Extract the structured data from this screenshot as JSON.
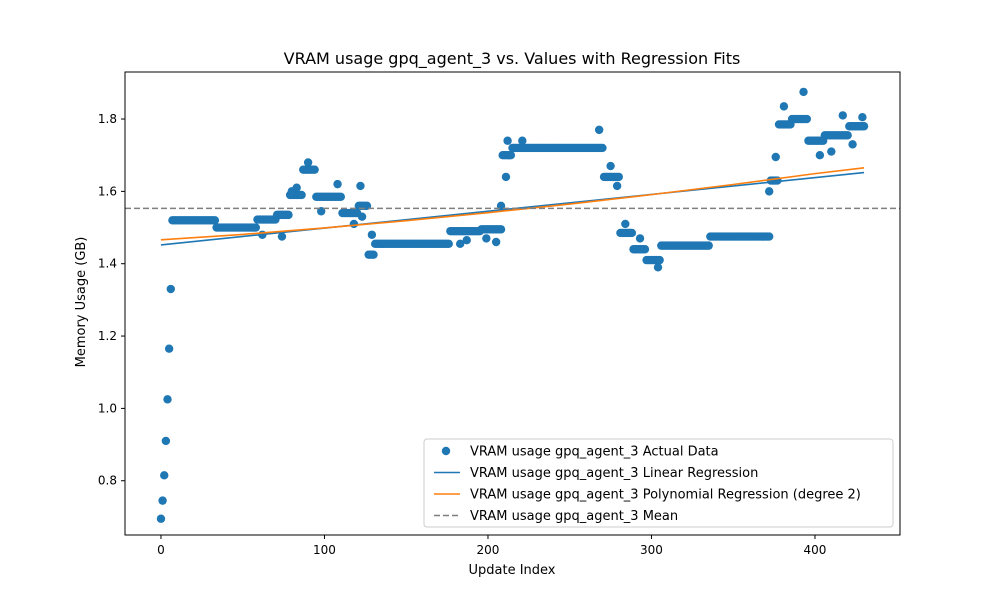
{
  "chart_data": {
    "type": "scatter",
    "title": "VRAM usage gpq_agent_3 vs. Values with Regression Fits",
    "xlabel": "Update Index",
    "ylabel": "Memory Usage (GB)",
    "xlim": [
      -22,
      452
    ],
    "ylim": [
      0.65,
      1.93
    ],
    "x_ticks": [
      0,
      100,
      200,
      300,
      400
    ],
    "y_ticks": [
      0.8,
      1.0,
      1.2,
      1.4,
      1.6,
      1.8
    ],
    "grid": false,
    "legend_position": "lower-right",
    "colors": {
      "scatter": "#1f77b4",
      "linear": "#1f77b4",
      "poly": "#ff7f0e",
      "mean": "#7f7f7f"
    },
    "legend": [
      {
        "label": "VRAM usage gpq_agent_3 Actual Data",
        "kind": "marker",
        "color": "#1f77b4"
      },
      {
        "label": "VRAM usage gpq_agent_3 Linear Regression",
        "kind": "line",
        "color": "#1f77b4"
      },
      {
        "label": "VRAM usage gpq_agent_3 Polynomial Regression (degree 2)",
        "kind": "line",
        "color": "#ff7f0e"
      },
      {
        "label": "VRAM usage gpq_agent_3 Mean",
        "kind": "dashed",
        "color": "#7f7f7f"
      }
    ],
    "mean": 1.553,
    "linear_regression": {
      "x": [
        0,
        430
      ],
      "y": [
        1.452,
        1.652
      ]
    },
    "polynomial_regression": {
      "x": [
        0,
        50,
        100,
        150,
        200,
        250,
        300,
        350,
        400,
        430
      ],
      "y": [
        1.466,
        1.481,
        1.499,
        1.519,
        1.541,
        1.565,
        1.591,
        1.619,
        1.649,
        1.665
      ]
    },
    "segments": [
      [
        0,
        0,
        0.695
      ],
      [
        1,
        1,
        0.745
      ],
      [
        2,
        2,
        0.815
      ],
      [
        3,
        3,
        0.91
      ],
      [
        4,
        4,
        1.025
      ],
      [
        5,
        5,
        1.165
      ],
      [
        6,
        6,
        1.33
      ],
      [
        7,
        33,
        1.52
      ],
      [
        34,
        58,
        1.5
      ],
      [
        59,
        70,
        1.522
      ],
      [
        71,
        78,
        1.535
      ],
      [
        79,
        86,
        1.59
      ],
      [
        87,
        94,
        1.66
      ],
      [
        95,
        110,
        1.585
      ],
      [
        111,
        120,
        1.54
      ],
      [
        121,
        126,
        1.56
      ],
      [
        127,
        130,
        1.425
      ],
      [
        131,
        176,
        1.455
      ],
      [
        177,
        195,
        1.49
      ],
      [
        196,
        208,
        1.495
      ],
      [
        209,
        214,
        1.7
      ],
      [
        215,
        270,
        1.72
      ],
      [
        271,
        280,
        1.64
      ],
      [
        281,
        288,
        1.485
      ],
      [
        289,
        296,
        1.44
      ],
      [
        297,
        305,
        1.41
      ],
      [
        306,
        335,
        1.45
      ],
      [
        336,
        372,
        1.475
      ],
      [
        373,
        377,
        1.63
      ],
      [
        378,
        385,
        1.785
      ],
      [
        386,
        395,
        1.8
      ],
      [
        396,
        405,
        1.74
      ],
      [
        406,
        420,
        1.755
      ],
      [
        421,
        430,
        1.78
      ]
    ],
    "outliers": [
      [
        62,
        1.48
      ],
      [
        74,
        1.475
      ],
      [
        80,
        1.6
      ],
      [
        83,
        1.61
      ],
      [
        90,
        1.68
      ],
      [
        98,
        1.545
      ],
      [
        108,
        1.62
      ],
      [
        118,
        1.51
      ],
      [
        122,
        1.615
      ],
      [
        123,
        1.53
      ],
      [
        129,
        1.48
      ],
      [
        183,
        1.455
      ],
      [
        187,
        1.465
      ],
      [
        199,
        1.47
      ],
      [
        205,
        1.46
      ],
      [
        208,
        1.56
      ],
      [
        211,
        1.64
      ],
      [
        212,
        1.74
      ],
      [
        221,
        1.74
      ],
      [
        268,
        1.77
      ],
      [
        275,
        1.67
      ],
      [
        279,
        1.615
      ],
      [
        284,
        1.51
      ],
      [
        293,
        1.47
      ],
      [
        304,
        1.39
      ],
      [
        393,
        1.875
      ],
      [
        381,
        1.835
      ],
      [
        376,
        1.695
      ],
      [
        372,
        1.6
      ],
      [
        417,
        1.81
      ],
      [
        429,
        1.805
      ],
      [
        410,
        1.71
      ],
      [
        403,
        1.7
      ],
      [
        423,
        1.73
      ]
    ]
  }
}
